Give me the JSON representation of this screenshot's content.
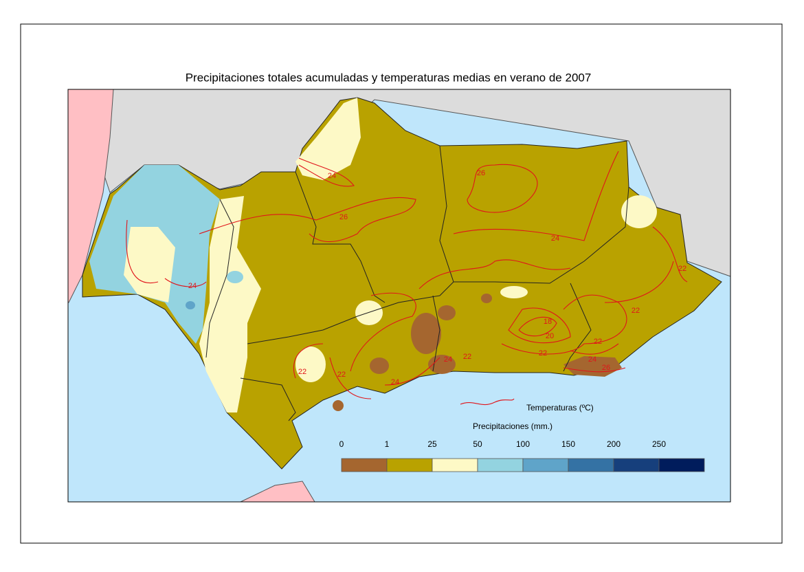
{
  "title": "Precipitaciones totales acumuladas y temperaturas medias en verano de 2007",
  "legend": {
    "temperature_label": "Temperaturas (ºC)",
    "precipitation_label": "Precipitaciones (mm.)",
    "bins": [
      0,
      1,
      25,
      50,
      100,
      150,
      200,
      250
    ],
    "colors": [
      "#a5662f",
      "#b9a200",
      "#fdf9c6",
      "#93d3e0",
      "#5fa4c9",
      "#3472a4",
      "#163f7c",
      "#001c5c"
    ]
  },
  "contour_labels": [
    24,
    26,
    26,
    24,
    24,
    22,
    22,
    18,
    20,
    22,
    22,
    24,
    26,
    24,
    22,
    22,
    24,
    22
  ]
}
